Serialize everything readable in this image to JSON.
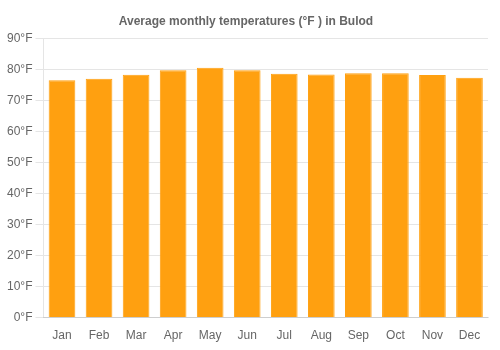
{
  "chart_data": {
    "type": "bar",
    "title": "Average monthly temperatures (°F ) in Bulod",
    "categories": [
      "Jan",
      "Feb",
      "Mar",
      "Apr",
      "May",
      "Jun",
      "Jul",
      "Aug",
      "Sep",
      "Oct",
      "Nov",
      "Dec"
    ],
    "values": [
      76.5,
      77.0,
      78.3,
      79.7,
      80.5,
      79.7,
      78.6,
      78.4,
      78.8,
      78.8,
      78.2,
      77.3
    ],
    "color": "#FFA010",
    "ylim": [
      0,
      90
    ],
    "yticks": [
      {
        "value": 0,
        "label": "0°F"
      },
      {
        "value": 10,
        "label": "10°F"
      },
      {
        "value": 20,
        "label": "20°F"
      },
      {
        "value": 30,
        "label": "30°F"
      },
      {
        "value": 40,
        "label": "40°F"
      },
      {
        "value": 50,
        "label": "50°F"
      },
      {
        "value": 60,
        "label": "60°F"
      },
      {
        "value": 70,
        "label": "70°F"
      },
      {
        "value": 80,
        "label": "80°F"
      },
      {
        "value": 90,
        "label": "90°F"
      }
    ],
    "grid": true
  }
}
